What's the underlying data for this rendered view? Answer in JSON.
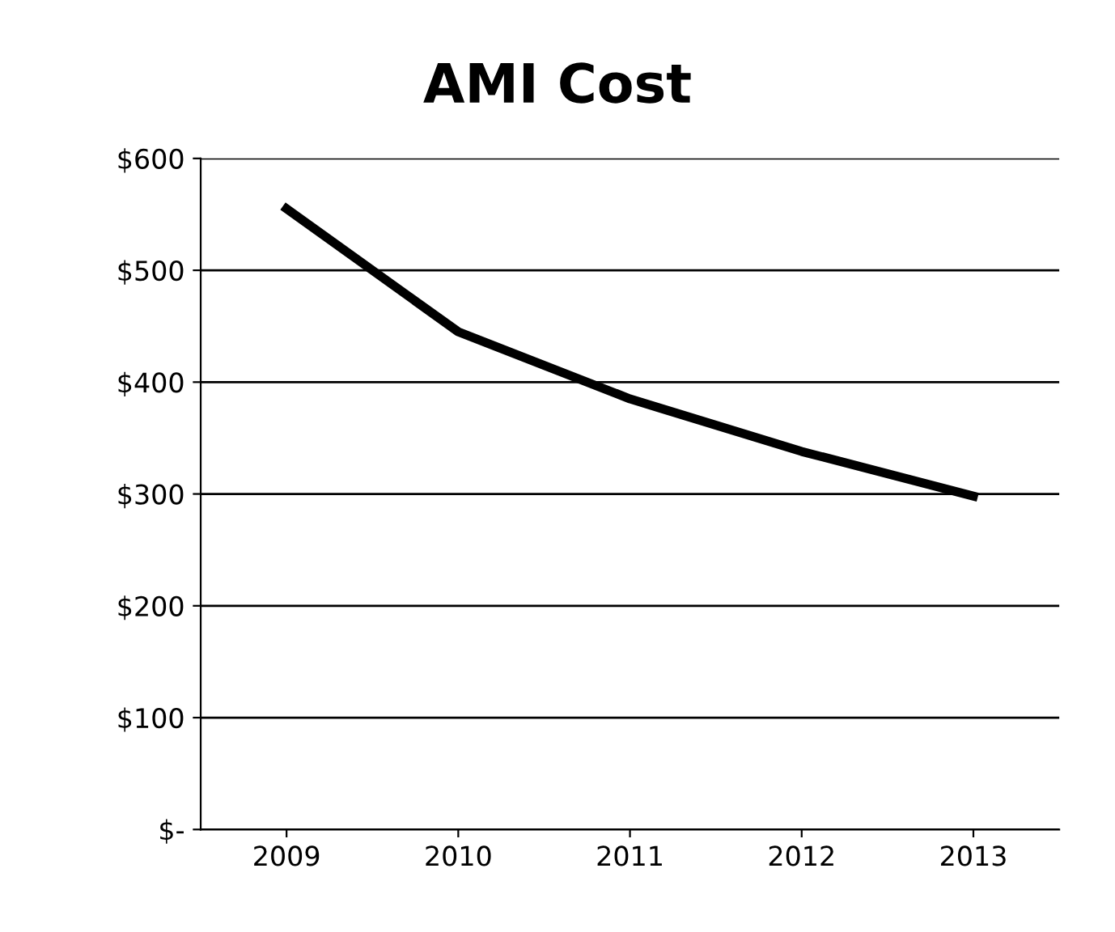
{
  "chart_data": {
    "type": "line",
    "title": "AMI Cost",
    "categories": [
      "2009",
      "2010",
      "2011",
      "2012",
      "2013"
    ],
    "series": [
      {
        "color": "#000000",
        "values": [
          555,
          445,
          385,
          338,
          298
        ]
      }
    ],
    "ylim": [
      0,
      600
    ],
    "yticks": [
      {
        "value": 0,
        "label": "$-"
      },
      {
        "value": 100,
        "label": "$100"
      },
      {
        "value": 200,
        "label": "$200"
      },
      {
        "value": 300,
        "label": "$300"
      },
      {
        "value": 400,
        "label": "$400"
      },
      {
        "value": 500,
        "label": "$500"
      },
      {
        "value": 600,
        "label": "$600"
      }
    ],
    "grid": "y",
    "legend": false,
    "marker": "none",
    "line_style": "solid"
  }
}
